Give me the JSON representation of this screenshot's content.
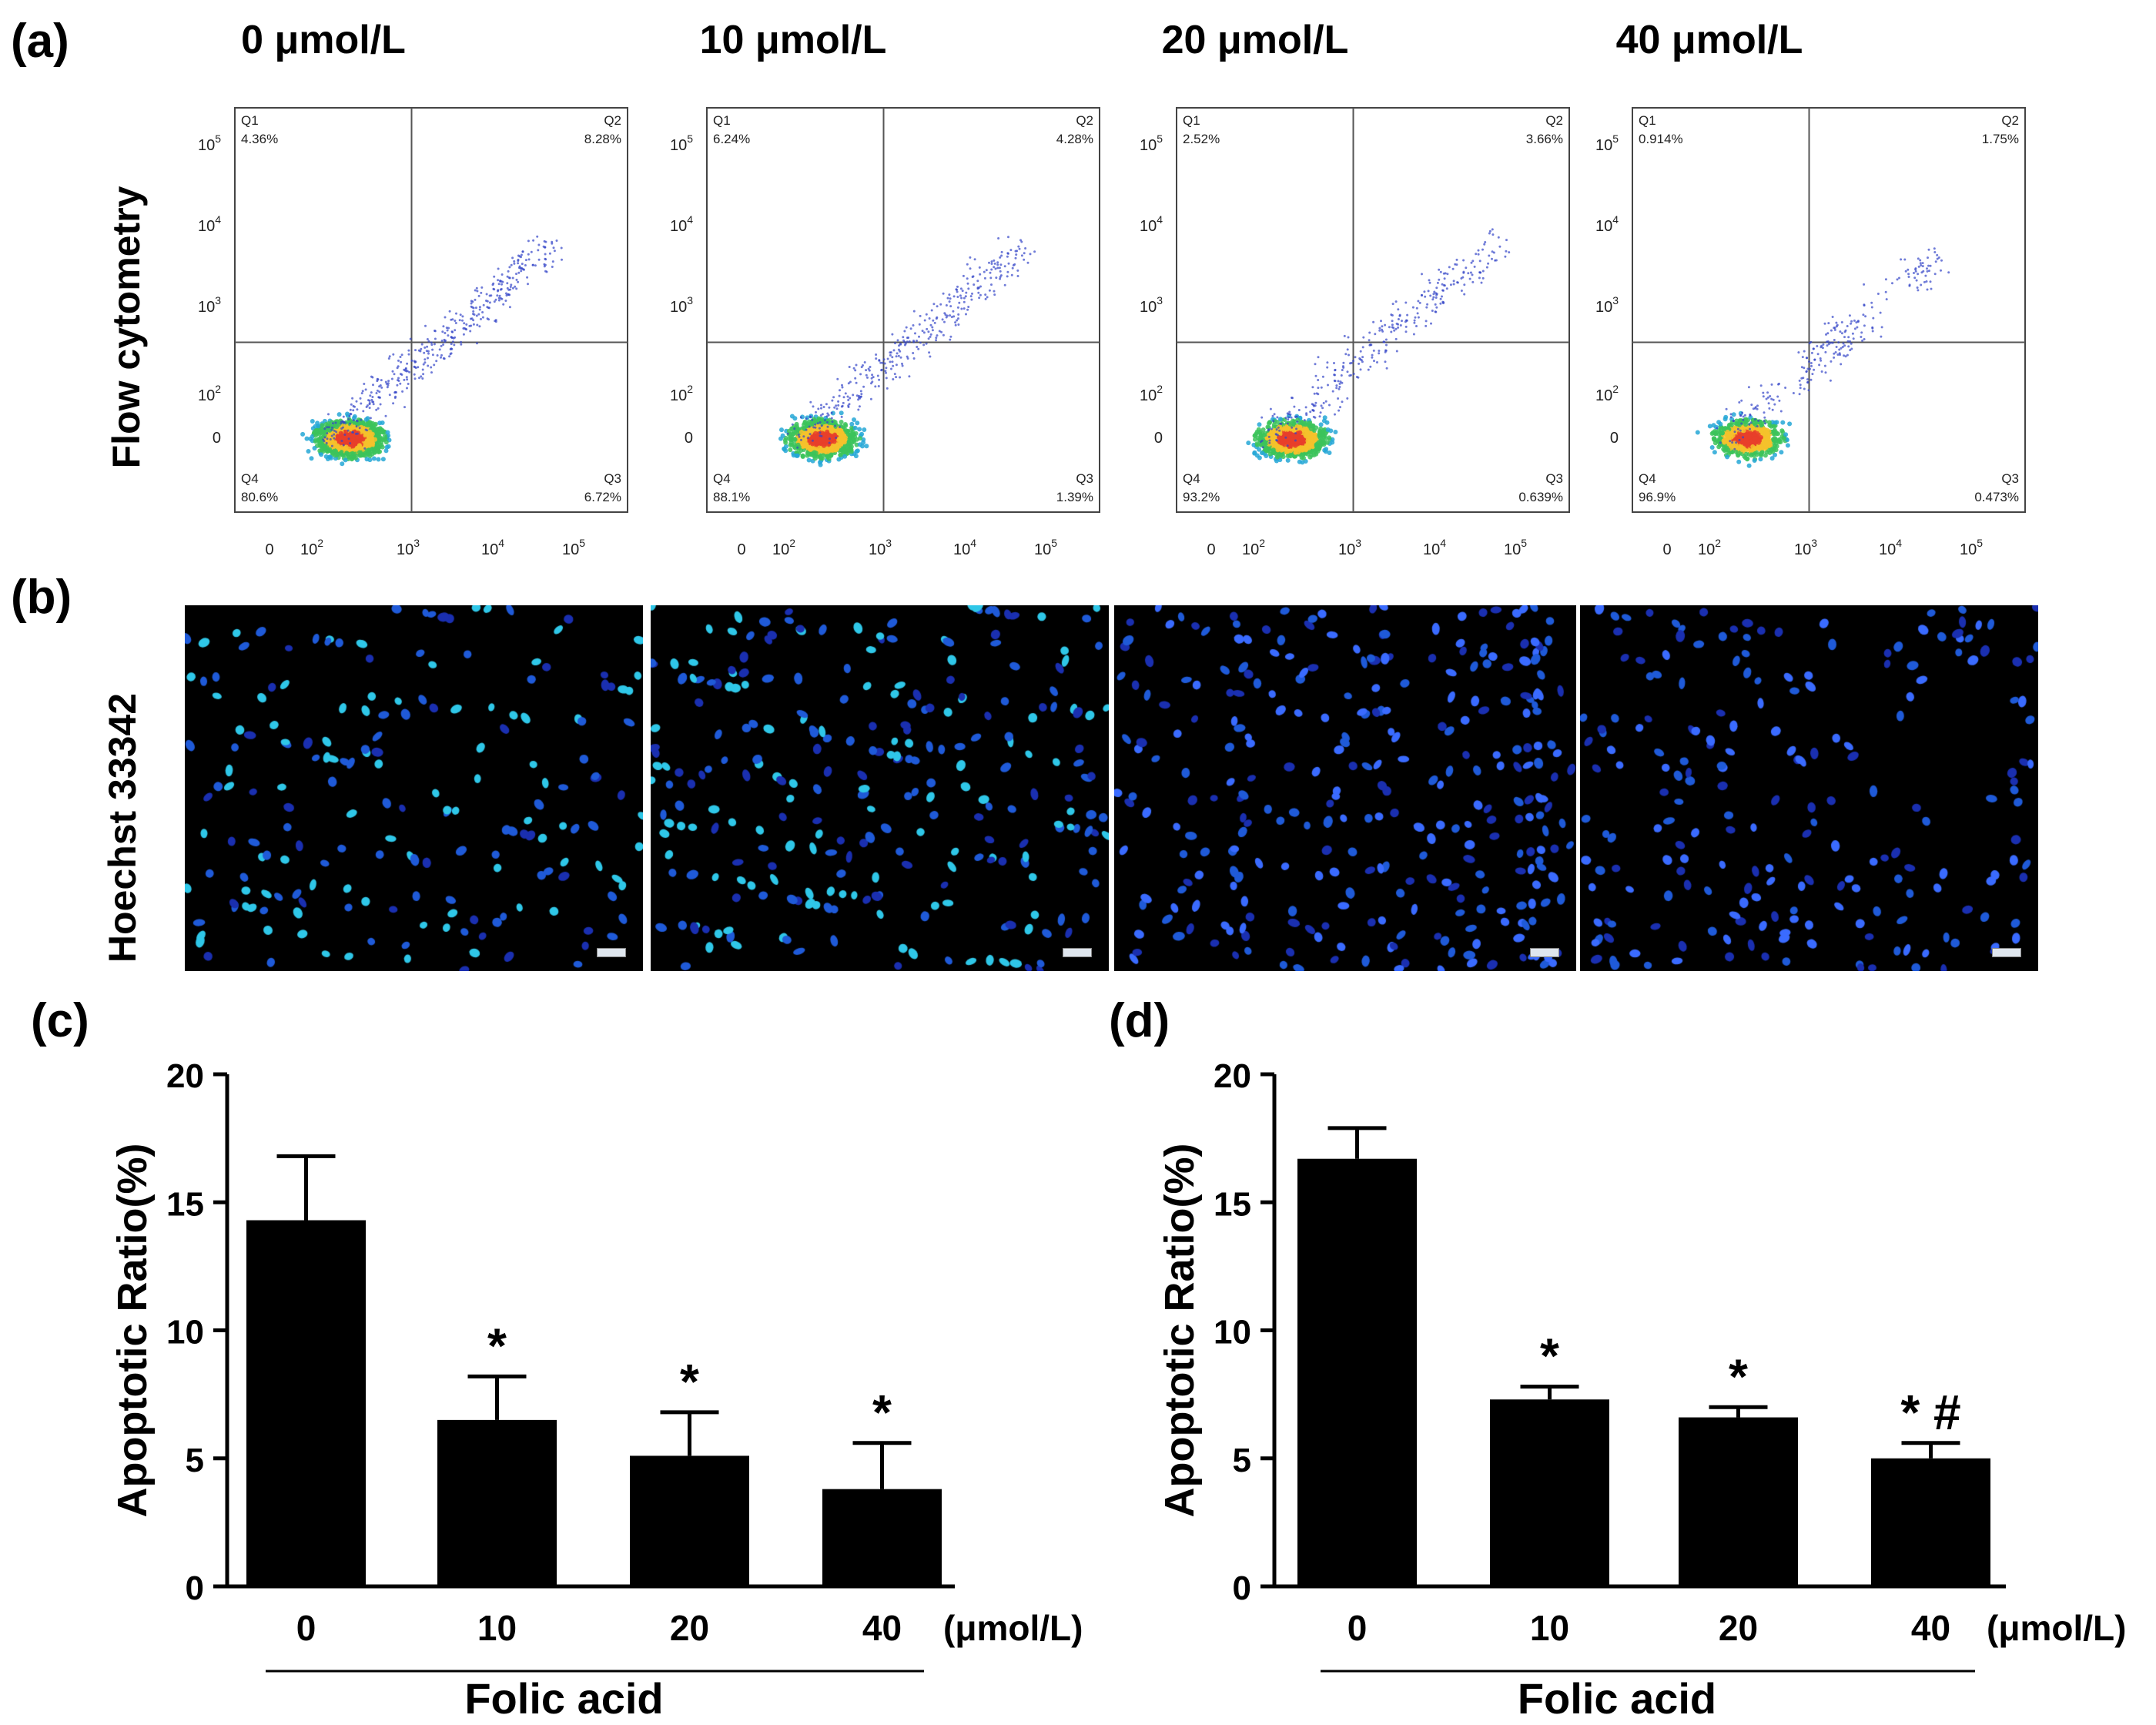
{
  "panels": {
    "a": "(a)",
    "b": "(b)",
    "c": "(c)",
    "d": "(d)"
  },
  "concentrations": [
    "0 μmol/L",
    "10 μmol/L",
    "20 μmol/L",
    "40 μmol/L"
  ],
  "row_labels": {
    "flow": "Flow cytometry",
    "hoechst": "Hoechst 33342"
  },
  "flow_plots": [
    {
      "q1": "4.36%",
      "q2": "8.28%",
      "q3": "6.72%",
      "q4": "80.6%"
    },
    {
      "q1": "6.24%",
      "q2": "4.28%",
      "q3": "1.39%",
      "q4": "88.1%"
    },
    {
      "q1": "2.52%",
      "q2": "3.66%",
      "q3": "0.639%",
      "q4": "93.2%"
    },
    {
      "q1": "0.914%",
      "q2": "1.75%",
      "q3": "0.473%",
      "q4": "96.9%"
    }
  ],
  "quadrant_names": [
    "Q1",
    "Q2",
    "Q3",
    "Q4"
  ],
  "flow_axis_ticks": {
    "y": [
      {
        "b": "10",
        "e": "5"
      },
      {
        "b": "10",
        "e": "4"
      },
      {
        "b": "10",
        "e": "3"
      },
      {
        "b": "10",
        "e": "2"
      },
      {
        "b": "0",
        "e": ""
      }
    ],
    "x": [
      {
        "b": "0",
        "e": ""
      },
      {
        "b": "10",
        "e": "2"
      },
      {
        "b": "10",
        "e": "3"
      },
      {
        "b": "10",
        "e": "4"
      },
      {
        "b": "10",
        "e": "5"
      }
    ]
  },
  "chart_data": [
    {
      "type": "bar",
      "panel": "(c)",
      "categories": [
        "0",
        "10",
        "20",
        "40"
      ],
      "values": [
        14.3,
        6.5,
        5.1,
        3.8
      ],
      "errors": [
        2.5,
        1.7,
        1.7,
        1.8
      ],
      "annotations": [
        "",
        "*",
        "*",
        "*"
      ],
      "ylabel": "Apoptotic Ratio(%)",
      "xlabel": "Folic acid",
      "unit": "(μmol/L)",
      "ylim": [
        0,
        20
      ],
      "yticks": [
        "0",
        "5",
        "10",
        "15",
        "20"
      ],
      "color": "#000000"
    },
    {
      "type": "bar",
      "panel": "(d)",
      "categories": [
        "0",
        "10",
        "20",
        "40"
      ],
      "values": [
        16.7,
        7.3,
        6.6,
        5.0
      ],
      "errors": [
        1.2,
        0.5,
        0.4,
        0.6
      ],
      "annotations": [
        "",
        "*",
        "*",
        "* #"
      ],
      "ylabel": "Apoptotic Ratio(%)",
      "xlabel": "Folic acid",
      "unit": "(μmol/L)",
      "ylim": [
        0,
        20
      ],
      "yticks": [
        "0",
        "5",
        "10",
        "15",
        "20"
      ],
      "color": "#000000"
    }
  ]
}
